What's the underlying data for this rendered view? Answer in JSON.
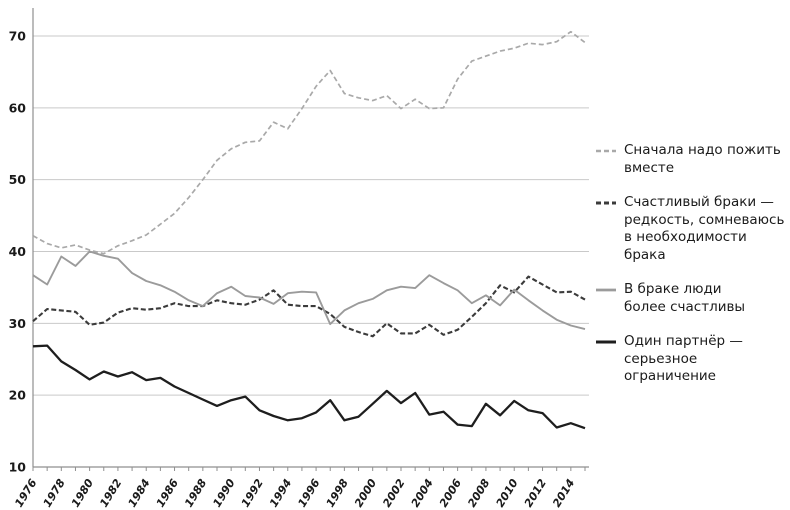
{
  "chart_data": {
    "type": "line",
    "title": "",
    "xlabel": "",
    "ylabel": "",
    "grid": true,
    "grid_color": "#c9c9c9",
    "axis_color": "#8f8f8f",
    "legend_position": "right",
    "ylim": [
      10,
      74
    ],
    "y_ticks": [
      10,
      20,
      30,
      40,
      50,
      60,
      70
    ],
    "x": [
      1976,
      1977,
      1978,
      1979,
      1980,
      1981,
      1982,
      1983,
      1984,
      1985,
      1986,
      1987,
      1988,
      1989,
      1990,
      1991,
      1992,
      1993,
      1994,
      1995,
      1996,
      1997,
      1998,
      1999,
      2000,
      2001,
      2002,
      2003,
      2004,
      2005,
      2006,
      2007,
      2008,
      2009,
      2010,
      2011,
      2012,
      2013,
      2014,
      2015
    ],
    "x_tick_labels": [
      "1976",
      "1978",
      "1980",
      "1982",
      "1984",
      "1986",
      "1988",
      "1990",
      "1992",
      "1994",
      "1996",
      "1998",
      "2000",
      "2002",
      "2004",
      "2006",
      "2008",
      "2010",
      "2012",
      "2014"
    ],
    "series": [
      {
        "name": "Сначала надо пожить вместе",
        "style": "dashed",
        "color": "#a9a9a9",
        "width": 1.7,
        "dash": "5,3",
        "values": [
          42.2,
          41.1,
          40.5,
          40.9,
          40.2,
          39.7,
          40.8,
          41.5,
          42.3,
          43.8,
          45.3,
          47.5,
          50.0,
          52.7,
          54.3,
          55.2,
          55.4,
          58.0,
          57.1,
          59.9,
          63.0,
          65.2,
          62.0,
          61.4,
          61.0,
          61.7,
          59.9,
          61.2,
          59.9,
          60.0,
          64.0,
          66.5,
          67.2,
          67.9,
          68.3,
          69.0,
          68.8,
          69.2,
          70.6,
          69.1
        ]
      },
      {
        "name": "Счастливый браки — редкость, сомневаюсь в необходимости брака",
        "style": "dashed",
        "color": "#3b3b3b",
        "width": 2.1,
        "dash": "5,2.6",
        "values": [
          30.3,
          32.0,
          31.8,
          31.6,
          29.8,
          30.1,
          31.5,
          32.1,
          31.9,
          32.1,
          32.8,
          32.4,
          32.4,
          33.2,
          32.8,
          32.6,
          33.3,
          34.6,
          32.6,
          32.4,
          32.4,
          31.3,
          29.5,
          28.8,
          28.2,
          30.0,
          28.6,
          28.6,
          29.8,
          28.4,
          29.1,
          30.9,
          32.8,
          35.3,
          34.3,
          36.5,
          35.4,
          34.3,
          34.4,
          33.3
        ]
      },
      {
        "name": "В браке люди более счастливы",
        "style": "solid",
        "color": "#9b9b9b",
        "width": 1.9,
        "dash": "",
        "values": [
          36.7,
          35.4,
          39.3,
          38.0,
          40.0,
          39.4,
          39.0,
          37.0,
          35.9,
          35.3,
          34.4,
          33.2,
          32.4,
          34.2,
          35.1,
          33.8,
          33.6,
          32.7,
          34.2,
          34.4,
          34.3,
          29.9,
          31.8,
          32.8,
          33.4,
          34.6,
          35.1,
          34.9,
          36.7,
          35.6,
          34.6,
          32.8,
          33.9,
          32.5,
          34.7,
          33.2,
          31.8,
          30.5,
          29.7,
          29.2
        ]
      },
      {
        "name": "Один партнёр — серьезное ограничение",
        "style": "solid",
        "color": "#1e1e1e",
        "width": 2.3,
        "dash": "",
        "values": [
          26.8,
          26.9,
          24.7,
          23.5,
          22.2,
          23.3,
          22.6,
          23.2,
          22.1,
          22.4,
          21.2,
          20.3,
          19.4,
          18.5,
          19.3,
          19.8,
          17.9,
          17.1,
          16.5,
          16.8,
          17.6,
          19.3,
          16.5,
          17.0,
          18.8,
          20.6,
          18.9,
          20.3,
          17.3,
          17.7,
          15.9,
          15.7,
          18.8,
          17.2,
          19.2,
          17.9,
          17.5,
          15.5,
          16.1,
          15.4
        ]
      }
    ]
  },
  "legend": {
    "items": [
      {
        "label": "Сначала надо пожить\nвместе"
      },
      {
        "label": "Счастливый браки —\nредкость, сомневаюсь\nв необходимости брака"
      },
      {
        "label": "В браке люди\nболее счастливы"
      },
      {
        "label": "Один партнёр —\nсерьезное\nограничение"
      }
    ]
  }
}
